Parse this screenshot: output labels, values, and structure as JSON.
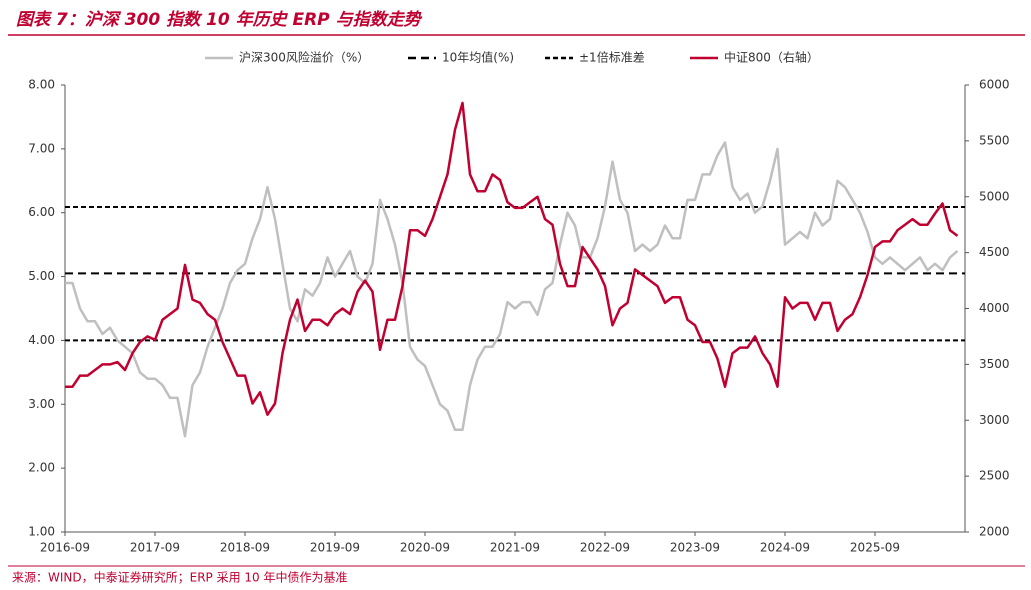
{
  "chart_data": {
    "type": "line",
    "title": "图表 7：沪深 300 指数 10 年历史 ERP 与指数走势",
    "source": "来源：WIND，中泰证券研究所；ERP 采用 10 年中债作为基准",
    "x": [
      "2016-09",
      "2016-10",
      "2016-11",
      "2016-12",
      "2017-01",
      "2017-02",
      "2017-03",
      "2017-04",
      "2017-05",
      "2017-06",
      "2017-07",
      "2017-08",
      "2017-09",
      "2017-10",
      "2017-11",
      "2017-12",
      "2018-01",
      "2018-02",
      "2018-03",
      "2018-04",
      "2018-05",
      "2018-06",
      "2018-07",
      "2018-08",
      "2018-09",
      "2018-10",
      "2018-11",
      "2018-12",
      "2019-01",
      "2019-02",
      "2019-03",
      "2019-04",
      "2019-05",
      "2019-06",
      "2019-07",
      "2019-08",
      "2019-09",
      "2019-10",
      "2019-11",
      "2019-12",
      "2020-01",
      "2020-02",
      "2020-03",
      "2020-04",
      "2020-05",
      "2020-06",
      "2020-07",
      "2020-08",
      "2020-09",
      "2020-10",
      "2020-11",
      "2020-12",
      "2021-01",
      "2021-02",
      "2021-03",
      "2021-04",
      "2021-05",
      "2021-06",
      "2021-07",
      "2021-08",
      "2021-09",
      "2021-10",
      "2021-11",
      "2021-12",
      "2022-01",
      "2022-02",
      "2022-03",
      "2022-04",
      "2022-05",
      "2022-06",
      "2022-07",
      "2022-08",
      "2022-09",
      "2022-10",
      "2022-11",
      "2022-12",
      "2023-01",
      "2023-02",
      "2023-03",
      "2023-04",
      "2023-05",
      "2023-06",
      "2023-07",
      "2023-08",
      "2023-09",
      "2023-10",
      "2023-11",
      "2023-12",
      "2024-01",
      "2024-02",
      "2024-03",
      "2024-04",
      "2024-05",
      "2024-06",
      "2024-07",
      "2024-08",
      "2024-09",
      "2024-10",
      "2024-11",
      "2024-12",
      "2025-01",
      "2025-02",
      "2025-03",
      "2025-04",
      "2025-05",
      "2025-06",
      "2025-07",
      "2025-08",
      "2025-09",
      "2025-10",
      "2025-11",
      "2025-12",
      "2026-01",
      "2026-02",
      "2026-03",
      "2026-04",
      "2026-05",
      "2026-06",
      "2026-07",
      "2026-08"
    ],
    "xticks": [
      "2016-09",
      "2017-09",
      "2018-09",
      "2019-09",
      "2020-09",
      "2021-09",
      "2022-09",
      "2023-09",
      "2024-09",
      "2025-09"
    ],
    "series": [
      {
        "name": "沪深300风险溢价（%）",
        "color": "#bfbfbf",
        "axis": "y",
        "values": [
          4.9,
          4.9,
          4.5,
          4.3,
          4.3,
          4.1,
          4.2,
          4.0,
          3.9,
          3.8,
          3.5,
          3.4,
          3.4,
          3.3,
          3.1,
          3.1,
          2.5,
          3.3,
          3.5,
          3.9,
          4.2,
          4.5,
          4.9,
          5.1,
          5.2,
          5.6,
          5.9,
          6.4,
          5.9,
          5.2,
          4.5,
          4.3,
          4.8,
          4.7,
          4.9,
          5.3,
          5.0,
          5.2,
          5.4,
          5.0,
          4.9,
          5.2,
          6.2,
          5.9,
          5.5,
          4.9,
          3.9,
          3.7,
          3.6,
          3.3,
          3.0,
          2.9,
          2.6,
          2.6,
          3.3,
          3.7,
          3.9,
          3.9,
          4.1,
          4.6,
          4.5,
          4.6,
          4.6,
          4.4,
          4.8,
          4.9,
          5.5,
          6.0,
          5.8,
          5.3,
          5.3,
          5.6,
          6.1,
          6.8,
          6.2,
          6.0,
          5.4,
          5.5,
          5.4,
          5.5,
          5.8,
          5.6,
          5.6,
          6.2,
          6.2,
          6.6,
          6.6,
          6.9,
          7.1,
          6.4,
          6.2,
          6.3,
          6.0,
          6.1,
          6.5,
          7.0,
          5.5,
          5.6,
          5.7,
          5.6,
          6.0,
          5.8,
          5.9,
          6.5,
          6.4,
          6.2,
          6.0,
          5.7,
          5.3,
          5.2,
          5.3,
          5.2,
          5.1,
          5.2,
          5.3,
          5.1,
          5.2,
          5.1,
          5.3,
          5.4
        ]
      },
      {
        "name": "中证800（右轴）",
        "color": "#c00030",
        "axis": "y2",
        "values": [
          3300,
          3300,
          3400,
          3400,
          3450,
          3500,
          3500,
          3520,
          3450,
          3600,
          3700,
          3750,
          3720,
          3900,
          3950,
          4000,
          4390,
          4080,
          4050,
          3950,
          3900,
          3700,
          3550,
          3400,
          3400,
          3150,
          3250,
          3050,
          3150,
          3600,
          3900,
          4080,
          3800,
          3900,
          3900,
          3850,
          3950,
          4000,
          3950,
          4150,
          4250,
          4150,
          3630,
          3900,
          3900,
          4200,
          4700,
          4700,
          4650,
          4800,
          5000,
          5200,
          5600,
          5840,
          5200,
          5050,
          5050,
          5200,
          5150,
          4950,
          4900,
          4900,
          4950,
          5000,
          4800,
          4750,
          4400,
          4200,
          4200,
          4550,
          4450,
          4350,
          4200,
          3850,
          4000,
          4050,
          4350,
          4300,
          4250,
          4200,
          4050,
          4100,
          4100,
          3900,
          3850,
          3700,
          3700,
          3550,
          3300,
          3600,
          3650,
          3650,
          3750,
          3600,
          3500,
          3300,
          4100,
          4000,
          4050,
          4050,
          3900,
          4050,
          4050,
          3800,
          3900,
          3950,
          4100,
          4300,
          4550,
          4600,
          4600,
          4700,
          4750,
          4800,
          4750,
          4750,
          4850,
          4940,
          4700,
          4650
        ]
      }
    ],
    "reference_lines": [
      {
        "name": "10年均值(%)",
        "values": [
          5.05
        ],
        "color": "#000000"
      },
      {
        "name": "±1倍标准差",
        "values": [
          6.09,
          4.0
        ],
        "color": "#000000"
      }
    ],
    "ylim": [
      1,
      8
    ],
    "yticks": [
      {
        "value": 1,
        "label": "1.00"
      },
      {
        "value": 2,
        "label": "2.00"
      },
      {
        "value": 3,
        "label": "3.00"
      },
      {
        "value": 4,
        "label": "4.00"
      },
      {
        "value": 5,
        "label": "5.00"
      },
      {
        "value": 6,
        "label": "6.00"
      },
      {
        "value": 7,
        "label": "7.00"
      },
      {
        "value": 8,
        "label": "8.00"
      }
    ],
    "y2lim": [
      2000,
      6000
    ],
    "y2ticks": [
      2000,
      2500,
      3000,
      3500,
      4000,
      4500,
      5000,
      5500,
      6000
    ]
  }
}
